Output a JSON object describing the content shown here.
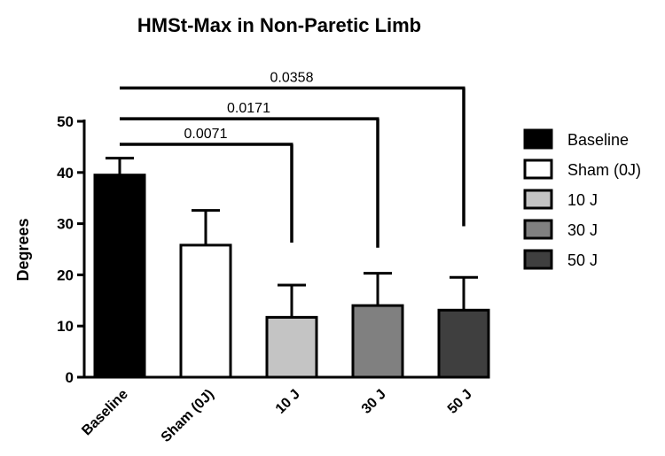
{
  "chart_data": {
    "type": "bar",
    "title": "HMSt-Max in Non-Paretic Limb",
    "xlabel": "",
    "ylabel": "Degrees",
    "ylim": [
      0,
      50
    ],
    "yticks": [
      0,
      10,
      20,
      30,
      40,
      50
    ],
    "categories": [
      "Baseline",
      "Sham (0J)",
      "10 J",
      "30 J",
      "50 J"
    ],
    "values": [
      39.5,
      25.8,
      11.7,
      14.0,
      13.1
    ],
    "errors": [
      3.3,
      6.8,
      6.3,
      6.3,
      6.4
    ],
    "colors": [
      "#000000",
      "#ffffff",
      "#c4c4c4",
      "#808080",
      "#3f3f3f"
    ],
    "legend": {
      "position": "right",
      "entries": [
        "Baseline",
        "Sham (0J)",
        "10 J",
        "30 J",
        "50 J"
      ]
    },
    "comparisons": [
      {
        "from": "Baseline",
        "to": "10 J",
        "p": "0.0071",
        "level": 45.5
      },
      {
        "from": "Baseline",
        "to": "30 J",
        "p": "0.0171",
        "level": 50.5
      },
      {
        "from": "Baseline",
        "to": "50 J",
        "p": "0.0358",
        "level": 56.5
      }
    ],
    "comparison_drop_to": [
      26.3,
      25.3,
      29.5
    ],
    "grid": false
  }
}
